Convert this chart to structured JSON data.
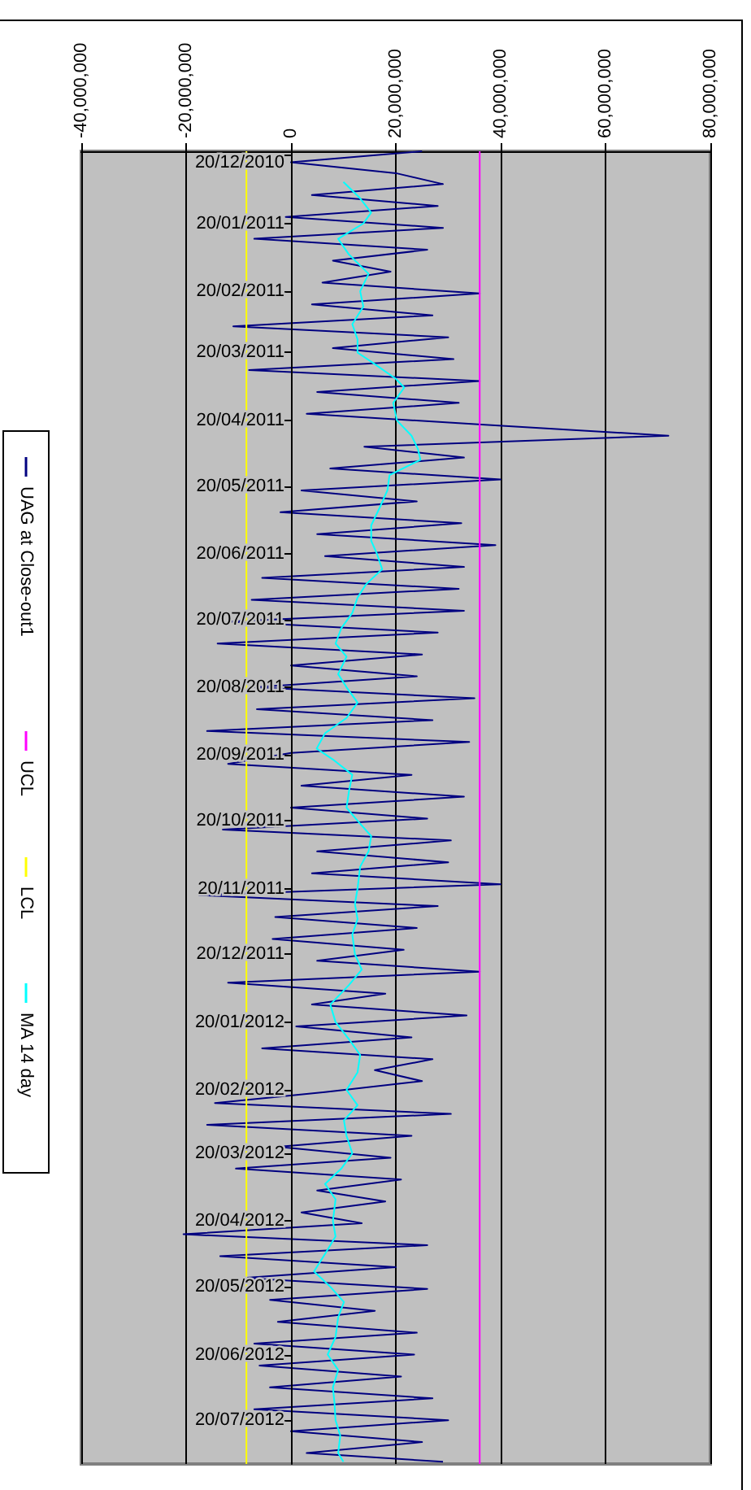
{
  "chart_data": {
    "type": "line",
    "orientation": "horizontal",
    "ylim": [
      "2012-08-09",
      "2010-12-18"
    ],
    "yticks": [
      {
        "value": "2010-12-20",
        "label": "20/12/2010"
      },
      {
        "value": "2011-01-20",
        "label": "20/01/2011"
      },
      {
        "value": "2011-02-20",
        "label": "20/02/2011"
      },
      {
        "value": "2011-03-20",
        "label": "20/03/2011"
      },
      {
        "value": "2011-04-20",
        "label": "20/04/2011"
      },
      {
        "value": "2011-05-20",
        "label": "20/05/2011"
      },
      {
        "value": "2011-06-20",
        "label": "20/06/2011"
      },
      {
        "value": "2011-07-20",
        "label": "20/07/2011"
      },
      {
        "value": "2011-08-20",
        "label": "20/08/2011"
      },
      {
        "value": "2011-09-20",
        "label": "20/09/2011"
      },
      {
        "value": "2011-10-20",
        "label": "20/10/2011"
      },
      {
        "value": "2011-11-20",
        "label": "20/11/2011"
      },
      {
        "value": "2011-12-20",
        "label": "20/12/2011"
      },
      {
        "value": "2012-01-20",
        "label": "20/01/2012"
      },
      {
        "value": "2012-02-20",
        "label": "20/02/2012"
      },
      {
        "value": "2012-03-20",
        "label": "20/03/2012"
      },
      {
        "value": "2012-04-20",
        "label": "20/04/2012"
      },
      {
        "value": "2012-05-20",
        "label": "20/05/2012"
      },
      {
        "value": "2012-06-20",
        "label": "20/06/2012"
      },
      {
        "value": "2012-07-20",
        "label": "20/07/2012"
      }
    ],
    "xlim": [
      -40000000,
      80000000
    ],
    "xticks": [
      {
        "value": -40000000,
        "label": "-40,000,000"
      },
      {
        "value": -20000000,
        "label": "-20,000,000"
      },
      0,
      {
        "value": 20000000,
        "label": "20,000,000"
      },
      {
        "value": 40000000,
        "label": "40,000,000"
      },
      {
        "value": 60000000,
        "label": "60,000,000"
      },
      {
        "value": 80000000,
        "label": "80,000,000"
      }
    ],
    "grid": "x",
    "legend": "left",
    "series": [
      {
        "name": "UAG at Close-out1",
        "color": "#000080",
        "x": [
          "2010-12-18",
          "2010-12-23",
          "2010-12-28",
          "2011-01-02",
          "2011-01-07",
          "2011-01-12",
          "2011-01-17",
          "2011-01-22",
          "2011-01-27",
          "2011-02-01",
          "2011-02-06",
          "2011-02-11",
          "2011-02-16",
          "2011-02-21",
          "2011-02-26",
          "2011-03-03",
          "2011-03-08",
          "2011-03-13",
          "2011-03-18",
          "2011-03-23",
          "2011-03-28",
          "2011-04-02",
          "2011-04-07",
          "2011-04-12",
          "2011-04-17",
          "2011-04-22",
          "2011-04-27",
          "2011-05-02",
          "2011-05-07",
          "2011-05-12",
          "2011-05-17",
          "2011-05-22",
          "2011-05-27",
          "2011-06-01",
          "2011-06-06",
          "2011-06-11",
          "2011-06-16",
          "2011-06-21",
          "2011-06-26",
          "2011-07-01",
          "2011-07-06",
          "2011-07-11",
          "2011-07-16",
          "2011-07-21",
          "2011-07-26",
          "2011-07-31",
          "2011-08-05",
          "2011-08-10",
          "2011-08-15",
          "2011-08-20",
          "2011-08-25",
          "2011-08-30",
          "2011-09-04",
          "2011-09-09",
          "2011-09-14",
          "2011-09-19",
          "2011-09-24",
          "2011-09-29",
          "2011-10-04",
          "2011-10-09",
          "2011-10-14",
          "2011-10-19",
          "2011-10-24",
          "2011-10-29",
          "2011-11-03",
          "2011-11-08",
          "2011-11-13",
          "2011-11-18",
          "2011-11-23",
          "2011-11-28",
          "2011-12-03",
          "2011-12-08",
          "2011-12-13",
          "2011-12-18",
          "2011-12-23",
          "2011-12-28",
          "2012-01-02",
          "2012-01-07",
          "2012-01-12",
          "2012-01-17",
          "2012-01-22",
          "2012-01-27",
          "2012-02-01",
          "2012-02-06",
          "2012-02-11",
          "2012-02-16",
          "2012-02-21",
          "2012-02-26",
          "2012-03-02",
          "2012-03-07",
          "2012-03-12",
          "2012-03-17",
          "2012-03-22",
          "2012-03-27",
          "2012-04-01",
          "2012-04-06",
          "2012-04-11",
          "2012-04-16",
          "2012-04-21",
          "2012-04-26",
          "2012-05-01",
          "2012-05-06",
          "2012-05-11",
          "2012-05-16",
          "2012-05-21",
          "2012-05-26",
          "2012-05-31",
          "2012-06-05",
          "2012-06-10",
          "2012-06-15",
          "2012-06-20",
          "2012-06-25",
          "2012-06-30",
          "2012-07-05",
          "2012-07-10",
          "2012-07-15",
          "2012-07-20",
          "2012-07-25",
          "2012-07-30",
          "2012-08-04",
          "2012-08-08"
        ],
        "values": [
          25000000,
          0,
          20000000,
          29000000,
          4000000,
          28000000,
          -1000000,
          29000000,
          -7000000,
          26000000,
          8000000,
          19000000,
          6000000,
          36000000,
          4000000,
          27000000,
          -11000000,
          30000000,
          8000000,
          31000000,
          -8000000,
          36000000,
          5000000,
          32000000,
          3000000,
          37000000,
          72000000,
          14000000,
          33000000,
          7500000,
          40000000,
          2000000,
          24000000,
          -2000000,
          32500000,
          5000000,
          39000000,
          6500000,
          33000000,
          -5500000,
          32000000,
          -7500000,
          33000000,
          -12000000,
          28000000,
          -14000000,
          25000000,
          0,
          24000000,
          -7000000,
          35000000,
          -6500000,
          27000000,
          -16000000,
          34000000,
          0,
          -12000000,
          23000000,
          2000000,
          33000000,
          0,
          26000000,
          -13000000,
          30500000,
          5000000,
          30000000,
          4000000,
          40000000,
          -17500000,
          28000000,
          -3000000,
          24000000,
          -3500000,
          21500000,
          5000000,
          36000000,
          -12000000,
          18000000,
          4000000,
          33500000,
          1000000,
          23000000,
          -5500000,
          27000000,
          16000000,
          25000000,
          6500000,
          -14500000,
          30500000,
          -16000000,
          23000000,
          -2500000,
          19000000,
          -10500000,
          21000000,
          5000000,
          18000000,
          2000000,
          13500000,
          -20500000,
          26000000,
          -13500000,
          20000000,
          -9000000,
          26000000,
          -4000000,
          16000000,
          -2500000,
          24000000,
          -7000000,
          23500000,
          -6000000,
          21000000,
          -4000000,
          27000000,
          -7000000,
          30000000,
          0,
          25000000,
          3000000,
          29000000
        ]
      },
      {
        "name": "UCL",
        "color": "#ff00ff",
        "x": [
          "2010-12-18",
          "2012-08-09"
        ],
        "values": [
          36000000,
          36000000
        ]
      },
      {
        "name": "LCL",
        "color": "#ffff00",
        "x": [
          "2010-12-18",
          "2012-08-09"
        ],
        "values": [
          -8500000,
          -8500000
        ]
      },
      {
        "name": "MA 14 day",
        "color": "#00ffff",
        "x": [
          "2011-01-01",
          "2011-01-08",
          "2011-01-15",
          "2011-01-20",
          "2011-01-27",
          "2011-02-03",
          "2011-02-12",
          "2011-02-20",
          "2011-02-27",
          "2011-03-07",
          "2011-03-14",
          "2011-03-20",
          "2011-03-25",
          "2011-04-01",
          "2011-04-05",
          "2011-04-12",
          "2011-04-20",
          "2011-04-27",
          "2011-05-03",
          "2011-05-08",
          "2011-05-15",
          "2011-05-22",
          "2011-05-30",
          "2011-06-07",
          "2011-06-14",
          "2011-06-20",
          "2011-06-27",
          "2011-07-04",
          "2011-07-10",
          "2011-07-17",
          "2011-07-24",
          "2011-07-31",
          "2011-08-06",
          "2011-08-14",
          "2011-08-20",
          "2011-08-27",
          "2011-09-03",
          "2011-09-10",
          "2011-09-17",
          "2011-09-22",
          "2011-09-29",
          "2011-10-06",
          "2011-10-14",
          "2011-10-20",
          "2011-10-27",
          "2011-11-03",
          "2011-11-10",
          "2011-11-20",
          "2011-11-27",
          "2011-12-04",
          "2011-12-11",
          "2011-12-20",
          "2011-12-27",
          "2012-01-03",
          "2012-01-12",
          "2012-01-20",
          "2012-01-28",
          "2012-02-04",
          "2012-02-12",
          "2012-02-20",
          "2012-02-27",
          "2012-03-05",
          "2012-03-12",
          "2012-03-20",
          "2012-03-27",
          "2012-04-03",
          "2012-04-10",
          "2012-04-20",
          "2012-04-27",
          "2012-05-05",
          "2012-05-13",
          "2012-05-20",
          "2012-05-27",
          "2012-06-03",
          "2012-06-12",
          "2012-06-20",
          "2012-06-27",
          "2012-07-05",
          "2012-07-12",
          "2012-07-20",
          "2012-07-27",
          "2012-08-04",
          "2012-08-08"
        ],
        "values": [
          10000000,
          13000000,
          15300000,
          13800000,
          9000000,
          11000000,
          14800000,
          13200000,
          13800000,
          11700000,
          12700000,
          12700000,
          15800000,
          20000000,
          21600000,
          19500000,
          20200000,
          23000000,
          24200000,
          24700000,
          18800000,
          18400000,
          16900000,
          15300000,
          15300000,
          16400000,
          17400000,
          14300000,
          12700000,
          11700000,
          9600000,
          8500000,
          10600000,
          9000000,
          10600000,
          12700000,
          10600000,
          6500000,
          4900000,
          8000000,
          11700000,
          11100000,
          10600000,
          12700000,
          15300000,
          14800000,
          13200000,
          12700000,
          12200000,
          12700000,
          11700000,
          12200000,
          13500000,
          11100000,
          7500000,
          8500000,
          11100000,
          13200000,
          12700000,
          10600000,
          12700000,
          10100000,
          10600000,
          11700000,
          9600000,
          6500000,
          8500000,
          8000000,
          8500000,
          6500000,
          4400000,
          7500000,
          10100000,
          9000000,
          8500000,
          7000000,
          9000000,
          8000000,
          8300000,
          8500000,
          9400000,
          9000000,
          10000000
        ]
      }
    ]
  }
}
